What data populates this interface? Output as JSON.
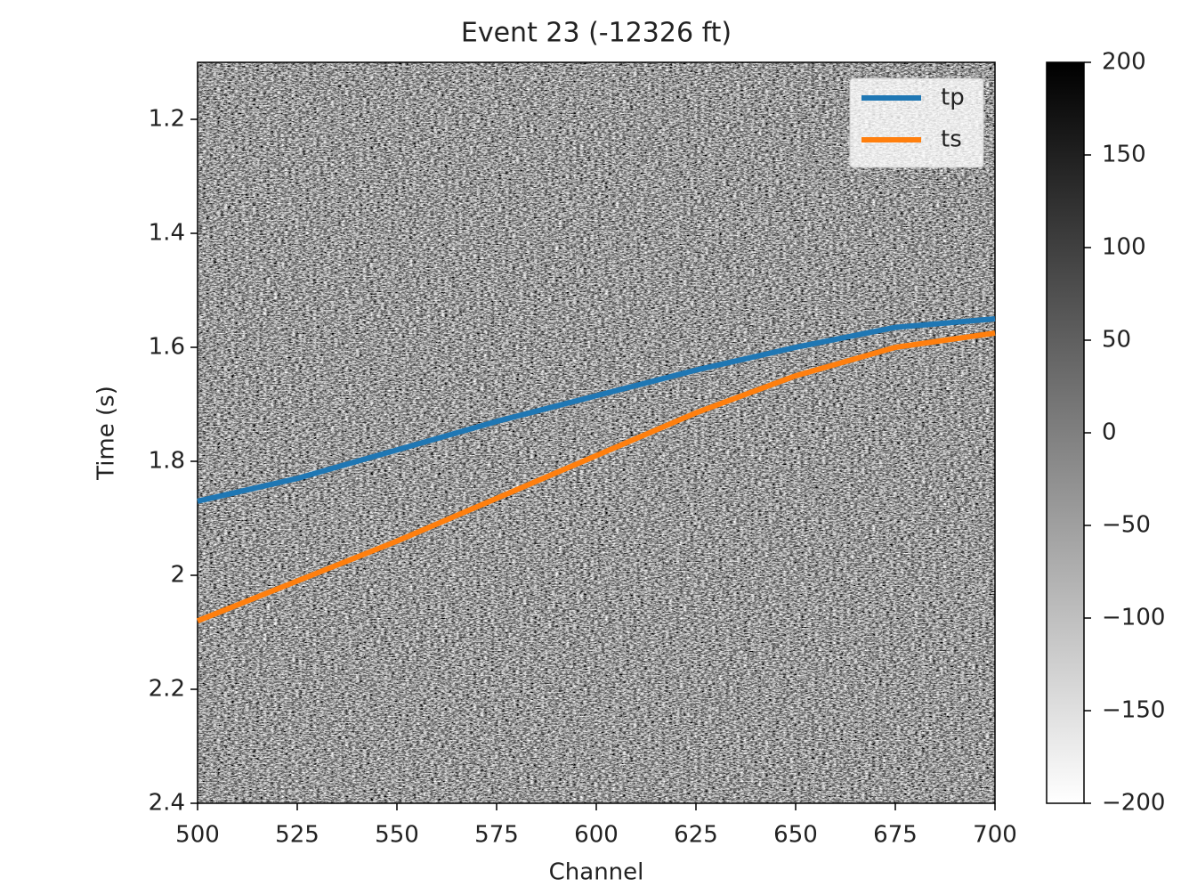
{
  "chart_data": {
    "type": "line",
    "title": "Event 23 (-12326 ft)",
    "xlabel": "Channel",
    "ylabel": "Time (s)",
    "x": [
      500,
      525,
      550,
      575,
      600,
      625,
      650,
      675,
      700
    ],
    "series": [
      {
        "name": "tp",
        "color": "#1f77b4",
        "values": [
          1.87,
          1.83,
          1.78,
          1.73,
          1.685,
          1.64,
          1.6,
          1.565,
          1.55
        ]
      },
      {
        "name": "ts",
        "color": "#ff7f0e",
        "values": [
          2.08,
          2.01,
          1.94,
          1.865,
          1.79,
          1.715,
          1.65,
          1.6,
          1.575
        ]
      }
    ],
    "xlim": [
      500,
      700
    ],
    "xticks": [
      500,
      525,
      550,
      575,
      600,
      625,
      650,
      675,
      700
    ],
    "ylim": [
      2.4,
      1.1
    ],
    "yticks": [
      1.2,
      1.4,
      1.6,
      1.8,
      2.0,
      2.2,
      2.4
    ],
    "legend": "upper right",
    "colorbar": {
      "lim": [
        -200,
        200
      ],
      "colors": [
        "#ffffff",
        "#000000"
      ],
      "ticks": [
        200,
        150,
        100,
        50,
        0,
        {
          "value": -50,
          "label": "−50"
        },
        {
          "value": -100,
          "label": "−100"
        },
        {
          "value": -150,
          "label": "−150"
        },
        {
          "value": -200,
          "label": "−200"
        }
      ]
    }
  }
}
